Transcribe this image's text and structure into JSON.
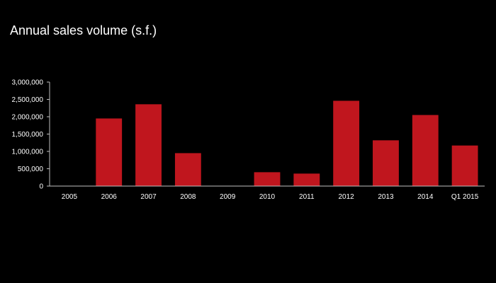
{
  "chart_data": {
    "type": "bar",
    "title": "Annual sales volume (s.f.)",
    "xlabel": "",
    "ylabel": "",
    "categories": [
      "2005",
      "2006",
      "2007",
      "2008",
      "2009",
      "2010",
      "2011",
      "2012",
      "2013",
      "2014",
      "Q1 2015"
    ],
    "values": [
      0,
      1950000,
      2360000,
      950000,
      0,
      400000,
      360000,
      2460000,
      1320000,
      2050000,
      1170000
    ],
    "ylim": [
      0,
      3000000
    ],
    "yticks": [
      0,
      500000,
      1000000,
      1500000,
      2000000,
      2500000,
      3000000
    ],
    "ytick_labels": [
      "0",
      "500,000",
      "1,000,000",
      "1,500,000",
      "2,000,000",
      "2,500,000",
      "3,000,000"
    ],
    "grid": false,
    "legend": "none",
    "bar_color": "#c0161e",
    "axis_color": "#bfbfbf",
    "text_color": "#ffffff",
    "background": "#000000"
  }
}
